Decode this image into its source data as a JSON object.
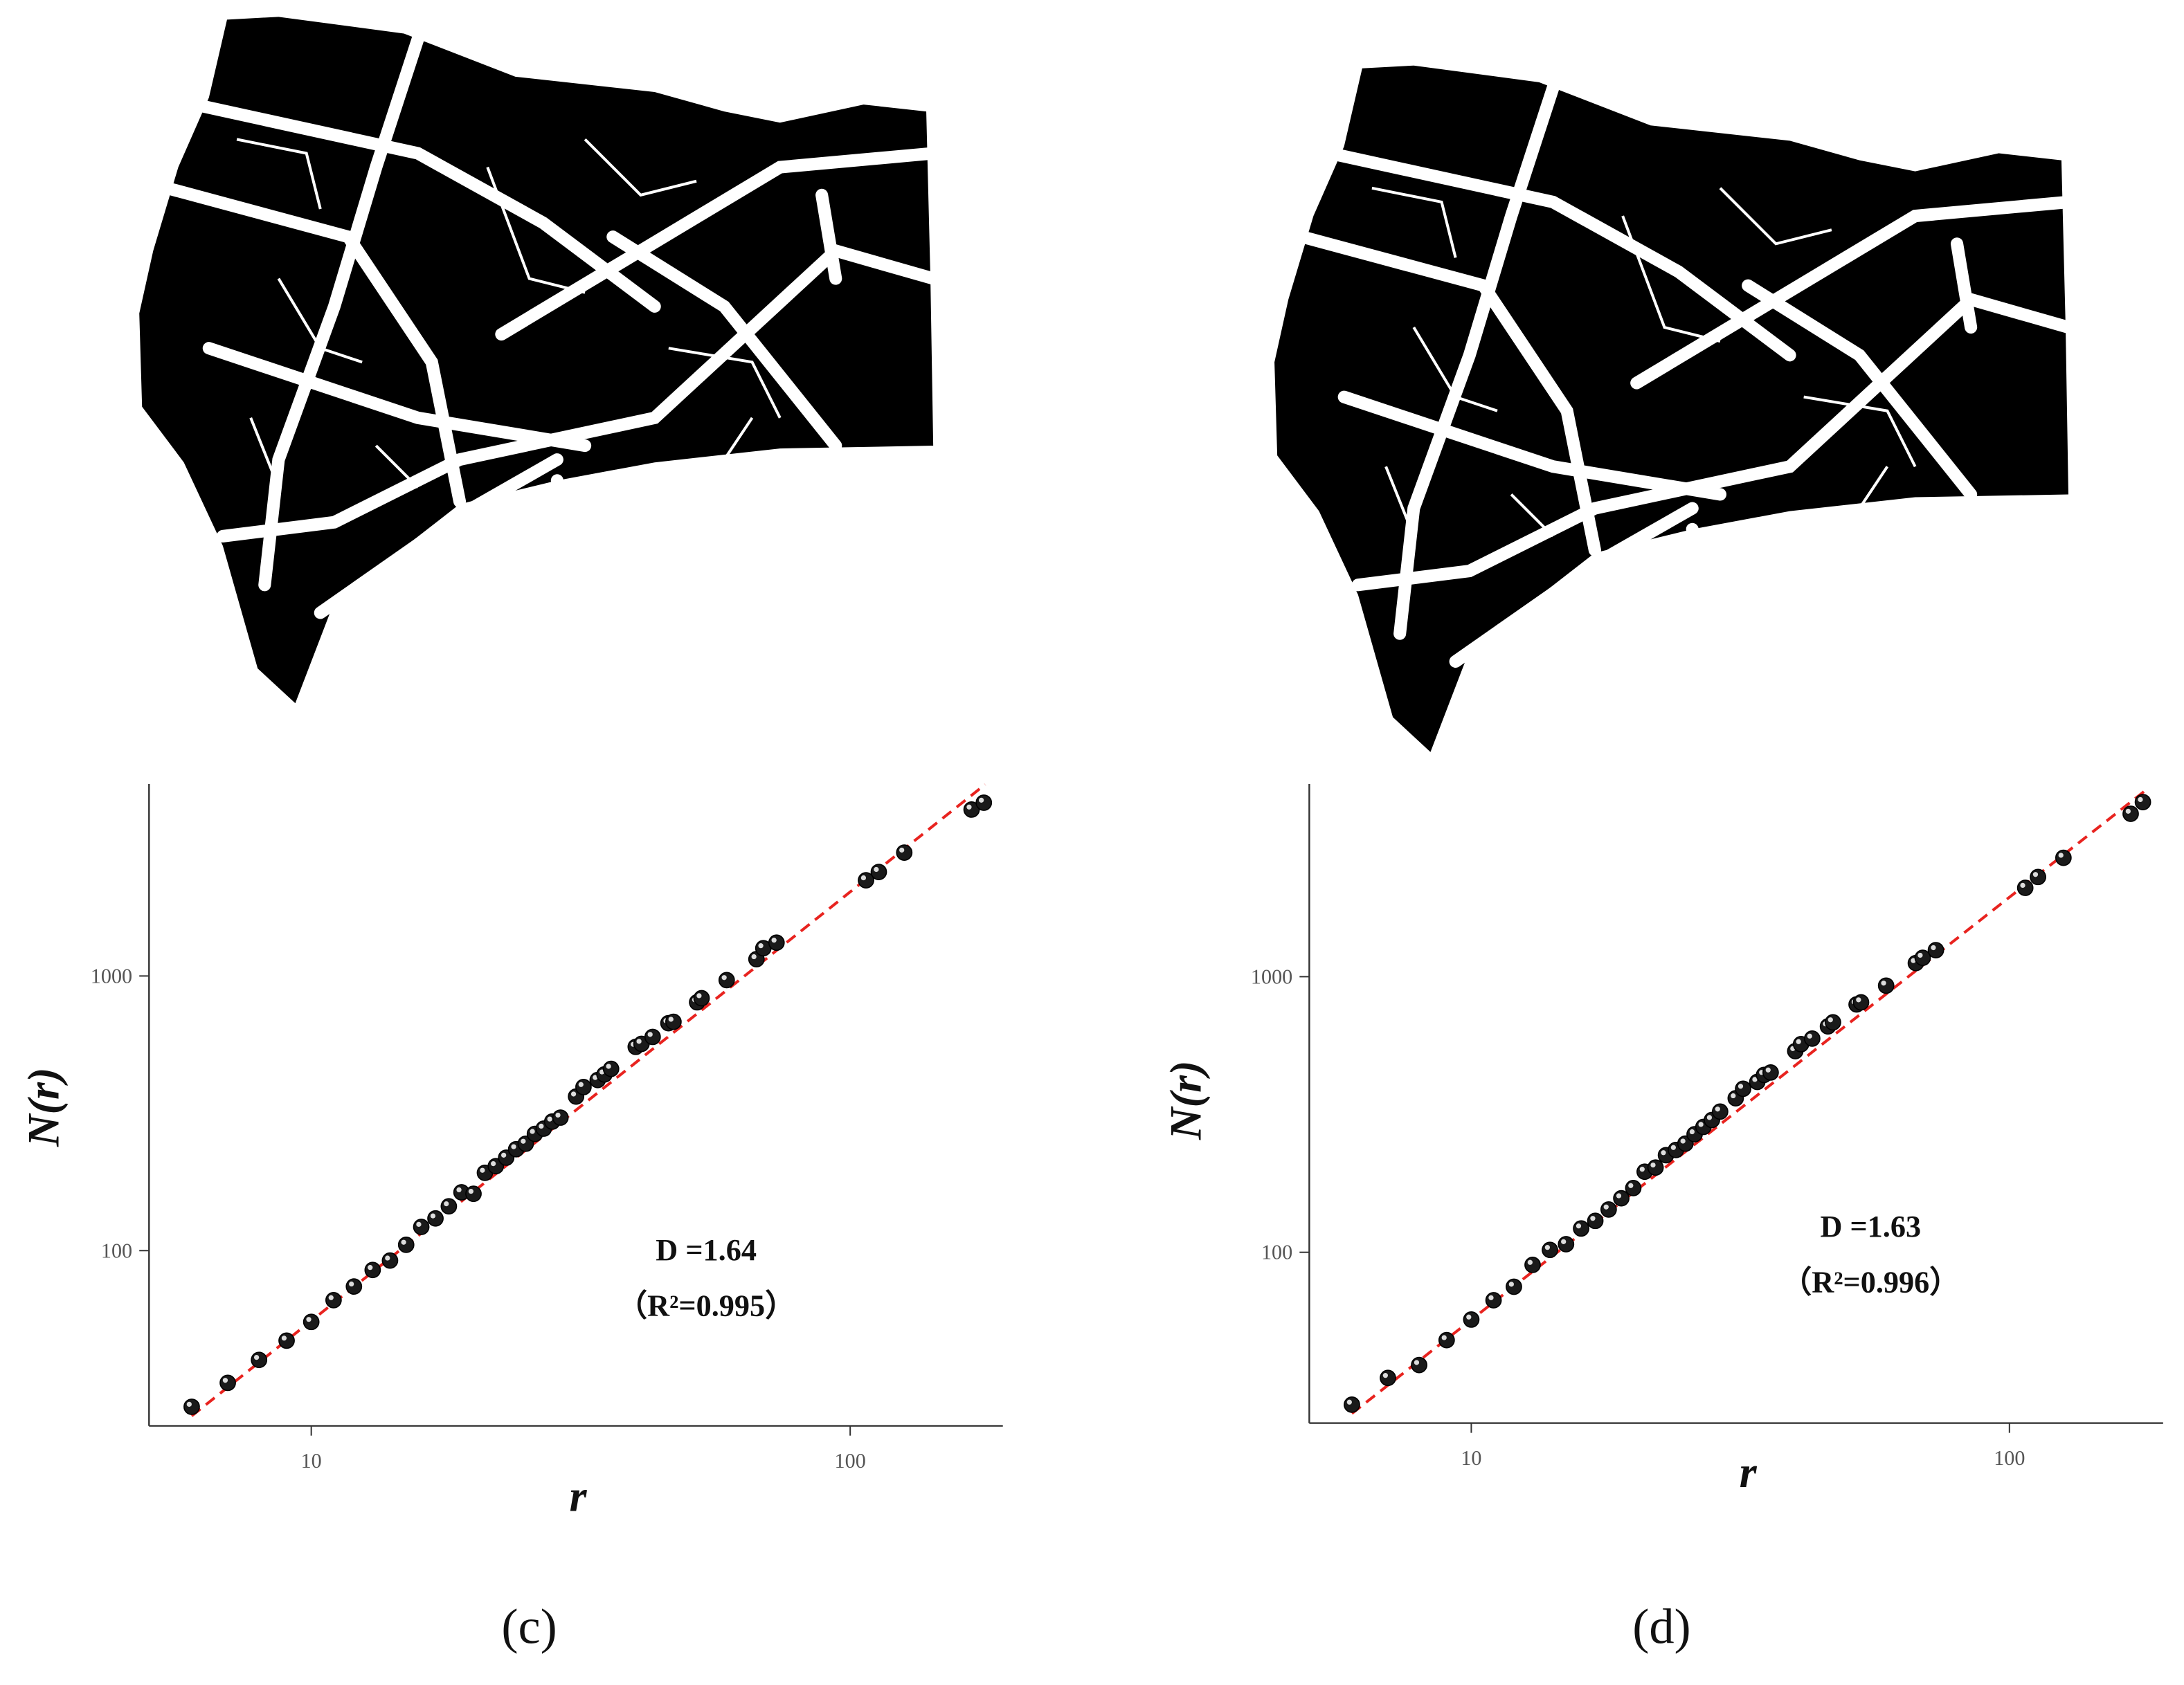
{
  "chart_data": [
    {
      "type": "scatter",
      "panel_label": "(c)",
      "x_label": "r",
      "y_label": "N(r)",
      "annotations": [
        "D =1.64",
        "（R²=0.995）"
      ],
      "x_scale": "log",
      "y_scale": "log",
      "xlim": [
        5,
        192
      ],
      "ylim": [
        23,
        5000
      ],
      "xticks": [
        10,
        100
      ],
      "yticks": [
        100,
        1000
      ],
      "series": [
        {
          "color": "#1a1a1a",
          "x": [
            6,
            7,
            8,
            9,
            10,
            11,
            12,
            13,
            14,
            15,
            16,
            17,
            18,
            19,
            20,
            21,
            22,
            23,
            24,
            25,
            26,
            27,
            28,
            29,
            31,
            32,
            34,
            35,
            36,
            40,
            41,
            43,
            46,
            47,
            52,
            53,
            59,
            67,
            69,
            73,
            107,
            113,
            126,
            168,
            177
          ],
          "values": [
            27,
            33,
            40,
            47,
            55,
            66,
            74,
            85,
            92,
            105,
            122,
            131,
            145,
            163,
            161,
            192,
            203,
            218,
            234,
            245,
            266,
            278,
            295,
            305,
            364,
            394,
            418,
            438,
            459,
            552,
            566,
            600,
            673,
            681,
            802,
            830,
            966,
            1151,
            1262,
            1322,
            2230,
            2392,
            2814,
            4036,
            4276
          ]
        }
      ],
      "fit": {
        "x": [
          6,
          178
        ],
        "values": [
          25,
          4980
        ],
        "color": "#e8231f",
        "style": "dashed"
      }
    },
    {
      "type": "scatter",
      "panel_label": "(d)",
      "x_label": "r",
      "y_label": "N(r)",
      "annotations": [
        "D =1.63",
        "（R²=0.996）"
      ],
      "x_scale": "log",
      "y_scale": "log",
      "xlim": [
        5,
        193
      ],
      "ylim": [
        24,
        5000
      ],
      "xticks": [
        10,
        100
      ],
      "yticks": [
        100,
        1000
      ],
      "series": [
        {
          "color": "#1a1a1a",
          "x": [
            6,
            7,
            8,
            9,
            10,
            11,
            12,
            13,
            14,
            15,
            16,
            17,
            18,
            19,
            20,
            21,
            22,
            23,
            24,
            25,
            26,
            27,
            28,
            29,
            31,
            32,
            34,
            35,
            36,
            40,
            41,
            43,
            46,
            47,
            52,
            53,
            59,
            67,
            69,
            73,
            107,
            113,
            126,
            168,
            177
          ],
          "values": [
            28,
            35,
            39,
            48,
            57,
            67,
            75,
            90,
            102,
            107,
            122,
            130,
            143,
            157,
            171,
            196,
            203,
            225,
            235,
            248,
            268,
            285,
            302,
            324,
            362,
            392,
            415,
            440,
            449,
            537,
            569,
            596,
            660,
            683,
            793,
            807,
            928,
            1120,
            1171,
            1248,
            2100,
            2300,
            2700,
            3900,
            4300
          ]
        }
      ],
      "fit": {
        "x": [
          6,
          178
        ],
        "values": [
          26,
          4700
        ],
        "color": "#e8231f",
        "style": "dashed"
      }
    }
  ]
}
